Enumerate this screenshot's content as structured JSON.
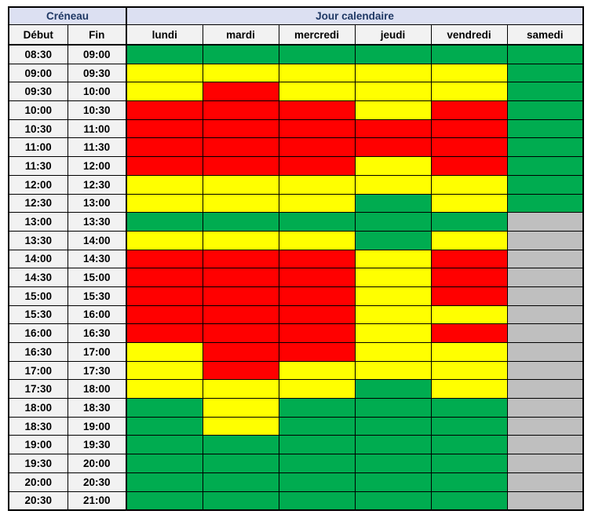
{
  "table": {
    "corner_header": "Créneau",
    "days_header": "Jour calendaire",
    "col_headers": {
      "start": "Début",
      "end": "Fin"
    },
    "days": [
      "lundi",
      "mardi",
      "mercredi",
      "jeudi",
      "vendredi",
      "samedi"
    ],
    "colors": {
      "green": "#00AC50",
      "yellow": "#FFFF00",
      "red": "#FF0000",
      "gray": "#BFBFBF",
      "group_header_bg": "#DCE0F2",
      "group_header_text": "#1F3864",
      "subheader_bg": "#F2F2F2",
      "border": "#000000"
    },
    "rows": [
      {
        "start": "08:30",
        "end": "09:00",
        "cells": [
          "green",
          "green",
          "green",
          "green",
          "green",
          "green"
        ]
      },
      {
        "start": "09:00",
        "end": "09:30",
        "cells": [
          "yellow",
          "yellow",
          "yellow",
          "yellow",
          "yellow",
          "green"
        ]
      },
      {
        "start": "09:30",
        "end": "10:00",
        "cells": [
          "yellow",
          "red",
          "yellow",
          "yellow",
          "yellow",
          "green"
        ]
      },
      {
        "start": "10:00",
        "end": "10:30",
        "cells": [
          "red",
          "red",
          "red",
          "yellow",
          "red",
          "green"
        ]
      },
      {
        "start": "10:30",
        "end": "11:00",
        "cells": [
          "red",
          "red",
          "red",
          "red",
          "red",
          "green"
        ]
      },
      {
        "start": "11:00",
        "end": "11:30",
        "cells": [
          "red",
          "red",
          "red",
          "red",
          "red",
          "green"
        ]
      },
      {
        "start": "11:30",
        "end": "12:00",
        "cells": [
          "red",
          "red",
          "red",
          "yellow",
          "red",
          "green"
        ]
      },
      {
        "start": "12:00",
        "end": "12:30",
        "cells": [
          "yellow",
          "yellow",
          "yellow",
          "yellow",
          "yellow",
          "green"
        ]
      },
      {
        "start": "12:30",
        "end": "13:00",
        "cells": [
          "yellow",
          "yellow",
          "yellow",
          "green",
          "yellow",
          "green"
        ]
      },
      {
        "start": "13:00",
        "end": "13:30",
        "cells": [
          "green",
          "green",
          "green",
          "green",
          "green",
          "gray"
        ]
      },
      {
        "start": "13:30",
        "end": "14:00",
        "cells": [
          "yellow",
          "yellow",
          "yellow",
          "green",
          "yellow",
          "gray"
        ]
      },
      {
        "start": "14:00",
        "end": "14:30",
        "cells": [
          "red",
          "red",
          "red",
          "yellow",
          "red",
          "gray"
        ]
      },
      {
        "start": "14:30",
        "end": "15:00",
        "cells": [
          "red",
          "red",
          "red",
          "yellow",
          "red",
          "gray"
        ]
      },
      {
        "start": "15:00",
        "end": "15:30",
        "cells": [
          "red",
          "red",
          "red",
          "yellow",
          "red",
          "gray"
        ]
      },
      {
        "start": "15:30",
        "end": "16:00",
        "cells": [
          "red",
          "red",
          "red",
          "yellow",
          "yellow",
          "gray"
        ]
      },
      {
        "start": "16:00",
        "end": "16:30",
        "cells": [
          "red",
          "red",
          "red",
          "yellow",
          "red",
          "gray"
        ]
      },
      {
        "start": "16:30",
        "end": "17:00",
        "cells": [
          "yellow",
          "red",
          "red",
          "yellow",
          "yellow",
          "gray"
        ]
      },
      {
        "start": "17:00",
        "end": "17:30",
        "cells": [
          "yellow",
          "red",
          "yellow",
          "yellow",
          "yellow",
          "gray"
        ]
      },
      {
        "start": "17:30",
        "end": "18:00",
        "cells": [
          "yellow",
          "yellow",
          "yellow",
          "green",
          "yellow",
          "gray"
        ]
      },
      {
        "start": "18:00",
        "end": "18:30",
        "cells": [
          "green",
          "yellow",
          "green",
          "green",
          "green",
          "gray"
        ]
      },
      {
        "start": "18:30",
        "end": "19:00",
        "cells": [
          "green",
          "yellow",
          "green",
          "green",
          "green",
          "gray"
        ]
      },
      {
        "start": "19:00",
        "end": "19:30",
        "cells": [
          "green",
          "green",
          "green",
          "green",
          "green",
          "gray"
        ]
      },
      {
        "start": "19:30",
        "end": "20:00",
        "cells": [
          "green",
          "green",
          "green",
          "green",
          "green",
          "gray"
        ]
      },
      {
        "start": "20:00",
        "end": "20:30",
        "cells": [
          "green",
          "green",
          "green",
          "green",
          "green",
          "gray"
        ]
      },
      {
        "start": "20:30",
        "end": "21:00",
        "cells": [
          "green",
          "green",
          "green",
          "green",
          "green",
          "gray"
        ]
      }
    ]
  }
}
